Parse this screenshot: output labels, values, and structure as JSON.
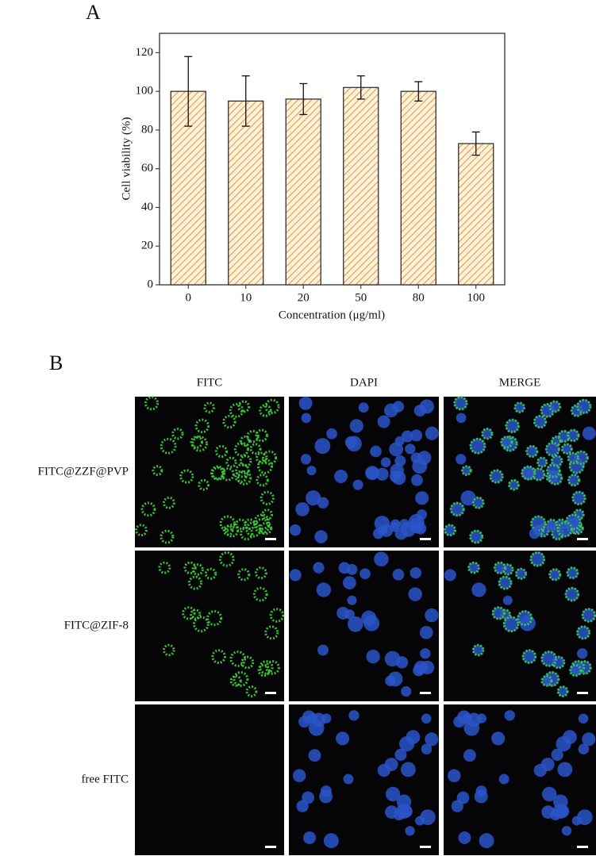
{
  "panel_a_label": "A",
  "chart_data": {
    "type": "bar",
    "categories": [
      "0",
      "10",
      "20",
      "50",
      "80",
      "100"
    ],
    "values": [
      100,
      95,
      96,
      102,
      100,
      73
    ],
    "errors": [
      18,
      13,
      8,
      6,
      5,
      6
    ],
    "color": "#e8a33d",
    "x_label": "Concentration (μg/ml)",
    "y_label": "Cell viability (%)",
    "ylim": [
      0,
      130
    ],
    "yticks": [
      0,
      20,
      40,
      60,
      80,
      100,
      120
    ]
  },
  "panel_b": {
    "label": "B",
    "columns": [
      "FITC",
      "DAPI",
      "MERGE"
    ],
    "rows": [
      "FITC@ZZF@PVP",
      "FITC@ZIF-8",
      "free FITC"
    ]
  }
}
